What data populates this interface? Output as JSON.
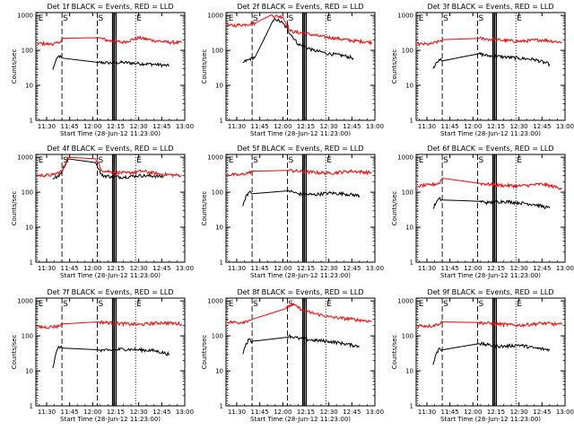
{
  "window": {
    "width": 640,
    "height": 480
  },
  "colors": {
    "events": "#000000",
    "lld": "#ff0000",
    "axes": "#000000",
    "background": "#ffffff"
  },
  "panel_common": {
    "xlabel": "Start Time (28-Jun-12 11:23:00)",
    "ylabel": "Counts/sec",
    "xticks": [
      "11:30",
      "11:45",
      "12:00",
      "12:15",
      "12:30",
      "12:45",
      "13:00"
    ],
    "xtick_minutes": [
      30,
      45,
      60,
      75,
      90,
      105,
      120
    ],
    "xlim_minutes": [
      23,
      120
    ],
    "yticks": [
      "1",
      "10",
      "100",
      "1000"
    ],
    "yvalues": [
      1,
      10,
      100,
      1000
    ],
    "ylim": [
      1,
      1200
    ],
    "yscale": "log",
    "markers": [
      {
        "label": "E",
        "minute": 24,
        "style": "dotted"
      },
      {
        "label": "S",
        "minute": 40,
        "style": "dashed"
      },
      {
        "label": "S",
        "minute": 63,
        "style": "dashed"
      },
      {
        "label": "E",
        "minute": 88,
        "style": "dotted"
      }
    ]
  },
  "chart_data": [
    {
      "type": "line",
      "title": "Det 1f BLACK = Events, RED = LLD",
      "gap_minutes": [
        41,
        64
      ],
      "series": [
        {
          "name": "BLACK = Events",
          "x": [
            34,
            36,
            38,
            40,
            64,
            70,
            80,
            90,
            100,
            110
          ],
          "y": [
            28,
            50,
            70,
            60,
            45,
            44,
            45,
            42,
            40,
            36
          ]
        },
        {
          "name": "RED = LLD",
          "x": [
            24,
            32,
            38,
            40,
            64,
            70,
            80,
            90,
            100,
            110,
            118
          ],
          "y": [
            160,
            150,
            160,
            220,
            230,
            190,
            170,
            230,
            190,
            170,
            165
          ]
        }
      ]
    },
    {
      "type": "line",
      "title": "Det 2f BLACK = Events, RED = LLD",
      "gap_minutes": [
        44,
        52
      ],
      "series": [
        {
          "name": "BLACK = Events",
          "x": [
            34,
            38,
            42,
            52,
            55,
            60,
            70,
            80,
            90,
            100,
            106
          ],
          "y": [
            45,
            55,
            65,
            500,
            800,
            600,
            150,
            100,
            80,
            70,
            60
          ]
        },
        {
          "name": "RED = LLD",
          "x": [
            24,
            30,
            36,
            42,
            52,
            60,
            65,
            75,
            85,
            95,
            105,
            118
          ],
          "y": [
            500,
            520,
            550,
            600,
            1000,
            900,
            350,
            300,
            250,
            220,
            190,
            170
          ]
        }
      ]
    },
    {
      "type": "line",
      "title": "Det 3f BLACK = Events, RED = LLD",
      "gap_minutes": [
        41,
        64
      ],
      "series": [
        {
          "name": "BLACK = Events",
          "x": [
            34,
            36,
            38,
            40,
            64,
            70,
            80,
            90,
            100,
            110
          ],
          "y": [
            30,
            45,
            55,
            50,
            80,
            70,
            65,
            60,
            55,
            40
          ]
        },
        {
          "name": "RED = LLD",
          "x": [
            24,
            32,
            38,
            40,
            64,
            75,
            90,
            105,
            118
          ],
          "y": [
            150,
            150,
            180,
            200,
            220,
            200,
            180,
            200,
            170
          ]
        }
      ]
    },
    {
      "type": "line",
      "title": "Det 4f BLACK = Events, RED = LLD",
      "gap_minutes": [
        44,
        62
      ],
      "series": [
        {
          "name": "BLACK = Events",
          "x": [
            34,
            38,
            44,
            62,
            66,
            72,
            80,
            90,
            100,
            106
          ],
          "y": [
            250,
            280,
            900,
            700,
            300,
            280,
            270,
            300,
            290,
            280
          ]
        },
        {
          "name": "RED = LLD",
          "x": [
            24,
            34,
            40,
            44,
            62,
            66,
            72,
            82,
            92,
            104,
            118
          ],
          "y": [
            300,
            310,
            400,
            1000,
            900,
            420,
            380,
            350,
            400,
            330,
            300
          ]
        }
      ]
    },
    {
      "type": "line",
      "title": "Det 5f BLACK = Events, RED = LLD",
      "gap_minutes": [
        41,
        64
      ],
      "series": [
        {
          "name": "BLACK = Events",
          "x": [
            34,
            36,
            38,
            40,
            64,
            70,
            80,
            90,
            100,
            110
          ],
          "y": [
            40,
            80,
            100,
            90,
            110,
            90,
            85,
            95,
            90,
            80
          ]
        },
        {
          "name": "RED = LLD",
          "x": [
            24,
            32,
            38,
            40,
            64,
            75,
            90,
            105,
            118
          ],
          "y": [
            320,
            310,
            360,
            400,
            420,
            380,
            350,
            400,
            360
          ]
        }
      ]
    },
    {
      "type": "line",
      "title": "Det 6f BLACK = Events, RED = LLD",
      "gap_minutes": [
        41,
        64
      ],
      "series": [
        {
          "name": "BLACK = Events",
          "x": [
            34,
            36,
            38,
            40,
            64,
            70,
            80,
            90,
            100,
            110
          ],
          "y": [
            35,
            50,
            65,
            60,
            55,
            50,
            55,
            50,
            45,
            35
          ]
        },
        {
          "name": "RED = LLD",
          "x": [
            24,
            32,
            38,
            40,
            64,
            75,
            90,
            105,
            118
          ],
          "y": [
            150,
            160,
            180,
            250,
            180,
            160,
            150,
            170,
            130
          ]
        }
      ]
    },
    {
      "type": "line",
      "title": "Det 7f BLACK = Events, RED = LLD",
      "gap_minutes": [
        41,
        64
      ],
      "series": [
        {
          "name": "BLACK = Events",
          "x": [
            34,
            36,
            38,
            40,
            64,
            70,
            80,
            90,
            100,
            110
          ],
          "y": [
            12,
            30,
            50,
            45,
            40,
            38,
            42,
            40,
            38,
            30
          ]
        },
        {
          "name": "RED = LLD",
          "x": [
            24,
            32,
            38,
            40,
            64,
            75,
            90,
            105,
            118
          ],
          "y": [
            180,
            180,
            190,
            220,
            250,
            230,
            210,
            240,
            220
          ]
        }
      ]
    },
    {
      "type": "line",
      "title": "Det 8f BLACK = Events, RED = LLD",
      "gap_minutes": [
        41,
        62
      ],
      "series": [
        {
          "name": "BLACK = Events",
          "x": [
            34,
            36,
            38,
            40,
            62,
            64,
            70,
            80,
            90,
            100,
            110
          ],
          "y": [
            30,
            60,
            80,
            70,
            90,
            100,
            85,
            75,
            70,
            60,
            50
          ]
        },
        {
          "name": "RED = LLD",
          "x": [
            24,
            32,
            38,
            40,
            62,
            66,
            75,
            90,
            105,
            118
          ],
          "y": [
            250,
            240,
            280,
            300,
            600,
            800,
            500,
            350,
            300,
            260
          ]
        }
      ]
    },
    {
      "type": "line",
      "title": "Det 9f BLACK = Events, RED = LLD",
      "gap_minutes": [
        41,
        64
      ],
      "series": [
        {
          "name": "BLACK = Events",
          "x": [
            34,
            36,
            38,
            40,
            64,
            70,
            80,
            90,
            100,
            110
          ],
          "y": [
            15,
            30,
            45,
            40,
            60,
            55,
            50,
            55,
            45,
            40
          ]
        },
        {
          "name": "RED = LLD",
          "x": [
            24,
            32,
            38,
            40,
            64,
            75,
            90,
            105,
            118
          ],
          "y": [
            200,
            190,
            220,
            250,
            240,
            220,
            200,
            230,
            210
          ]
        }
      ]
    }
  ]
}
